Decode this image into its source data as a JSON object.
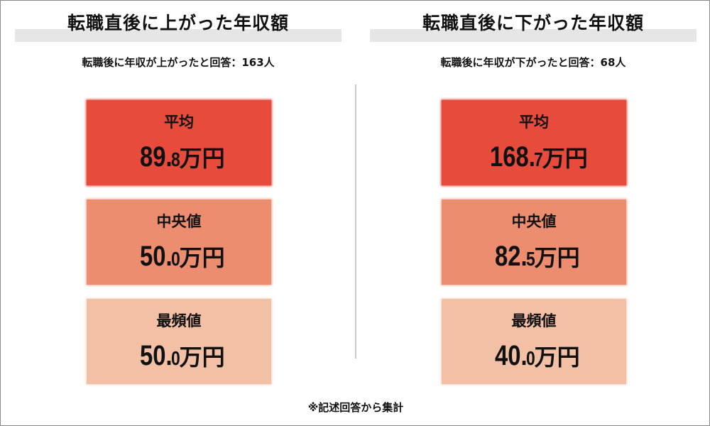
{
  "left": {
    "heading": "転職直後に上がった年収額",
    "subheading": "転職後に年収が上がったと回答：163人",
    "cards": [
      {
        "label": "平均",
        "value_int": "89.",
        "value_dec": "8",
        "unit": "万円",
        "bg": "#e74b3c",
        "border": "#e74b3c"
      },
      {
        "label": "中央値",
        "value_int": "50.",
        "value_dec": "0",
        "unit": "万円",
        "bg": "#ec8d70",
        "border": "#f1ad97"
      },
      {
        "label": "最頻値",
        "value_int": "50.",
        "value_dec": "0",
        "unit": "万円",
        "bg": "#f2c0a5",
        "border": "#f7d6c4"
      }
    ]
  },
  "right": {
    "heading": "転職直後に下がった年収額",
    "subheading": "転職後に年収が下がったと回答：68人",
    "cards": [
      {
        "label": "平均",
        "value_int": "168.",
        "value_dec": "7",
        "unit": "万円",
        "bg": "#e74b3c",
        "border": "#e74b3c"
      },
      {
        "label": "中央値",
        "value_int": "82.",
        "value_dec": "5",
        "unit": "万円",
        "bg": "#ec8d70",
        "border": "#f1ad97"
      },
      {
        "label": "最頻値",
        "value_int": "40.",
        "value_dec": "0",
        "unit": "万円",
        "bg": "#f2c0a5",
        "border": "#f7d6c4"
      }
    ]
  },
  "footnote": "※記述回答から集計"
}
